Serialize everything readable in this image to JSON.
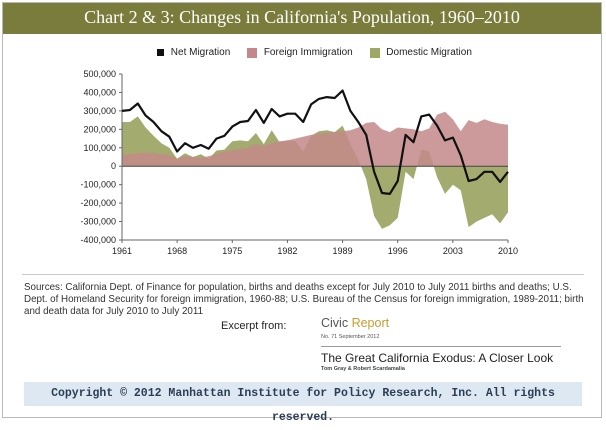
{
  "chart_data": {
    "type": "line",
    "title": "Chart 2 & 3: Changes in California's Population, 1960–2010",
    "xlabel": "",
    "ylabel": "",
    "xlim": [
      1961,
      2010
    ],
    "ylim": [
      -400000,
      500000
    ],
    "x_ticks": [
      "1961",
      "1968",
      "1975",
      "1982",
      "1989",
      "1996",
      "2003",
      "2010"
    ],
    "y_ticks": [
      "500,000",
      "400,000",
      "300,000",
      "200,000",
      "100,000",
      "0",
      "-100,000",
      "-200,000",
      "-300,000",
      "-400,000"
    ],
    "legend_position": "top",
    "grid": false,
    "x": [
      1961,
      1962,
      1963,
      1964,
      1965,
      1966,
      1967,
      1968,
      1969,
      1970,
      1971,
      1972,
      1973,
      1974,
      1975,
      1976,
      1977,
      1978,
      1979,
      1980,
      1981,
      1982,
      1983,
      1984,
      1985,
      1986,
      1987,
      1988,
      1989,
      1990,
      1991,
      1992,
      1993,
      1994,
      1995,
      1996,
      1997,
      1998,
      1999,
      2000,
      2001,
      2002,
      2003,
      2004,
      2005,
      2006,
      2007,
      2008,
      2009,
      2010
    ],
    "series": [
      {
        "name": "Net Migration",
        "style": "line",
        "color": "#111111",
        "values": [
          300000,
          305000,
          340000,
          275000,
          240000,
          190000,
          160000,
          80000,
          125000,
          100000,
          115000,
          95000,
          150000,
          165000,
          215000,
          240000,
          245000,
          305000,
          235000,
          310000,
          270000,
          285000,
          285000,
          240000,
          335000,
          365000,
          375000,
          370000,
          410000,
          300000,
          240000,
          170000,
          -30000,
          -145000,
          -150000,
          -80000,
          170000,
          130000,
          270000,
          280000,
          220000,
          140000,
          155000,
          60000,
          -80000,
          -70000,
          -30000,
          -30000,
          -85000,
          -30000
        ]
      },
      {
        "name": "Foreign Immigration",
        "style": "area",
        "color": "#c4888a",
        "values": [
          60000,
          65000,
          70000,
          75000,
          70000,
          65000,
          60000,
          40000,
          55000,
          50000,
          45000,
          55000,
          65000,
          80000,
          85000,
          95000,
          100000,
          120000,
          110000,
          125000,
          135000,
          140000,
          150000,
          160000,
          170000,
          175000,
          180000,
          185000,
          190000,
          195000,
          210000,
          235000,
          240000,
          200000,
          185000,
          210000,
          205000,
          200000,
          190000,
          205000,
          280000,
          295000,
          255000,
          190000,
          250000,
          235000,
          255000,
          240000,
          230000,
          225000
        ]
      },
      {
        "name": "Domestic Migration",
        "style": "area",
        "color": "#9ea766",
        "values": [
          240000,
          240000,
          270000,
          210000,
          165000,
          125000,
          100000,
          40000,
          70000,
          50000,
          65000,
          40000,
          85000,
          90000,
          135000,
          140000,
          135000,
          180000,
          120000,
          195000,
          130000,
          140000,
          135000,
          80000,
          165000,
          190000,
          195000,
          185000,
          220000,
          120000,
          35000,
          -70000,
          -270000,
          -340000,
          -320000,
          -280000,
          -30000,
          -70000,
          90000,
          80000,
          -60000,
          -150000,
          -100000,
          -130000,
          -330000,
          -300000,
          -280000,
          -260000,
          -310000,
          -250000
        ]
      }
    ]
  },
  "sources": "Sources: California Dept. of Finance for population, births and deaths except for July 2010 to July 2011 births and deaths; U.S. Dept. of Homeland Security for foreign immigration, 1960-88; U.S. Bureau of the Census for foreign immigration, 1989-2011; birth and death data for July 2010 to July 2011",
  "excerpt_label": "Excerpt from:",
  "report": {
    "brand_civic": "Civic",
    "brand_report": " Report",
    "issue": "No. 71 September 2012",
    "title": "The Great California Exodus: A Closer Look",
    "authors": "Tom Gray & Robert Scardamalia"
  },
  "copyright": "Copyright © 2012 Manhattan Institute for Policy Research, Inc. All rights reserved."
}
